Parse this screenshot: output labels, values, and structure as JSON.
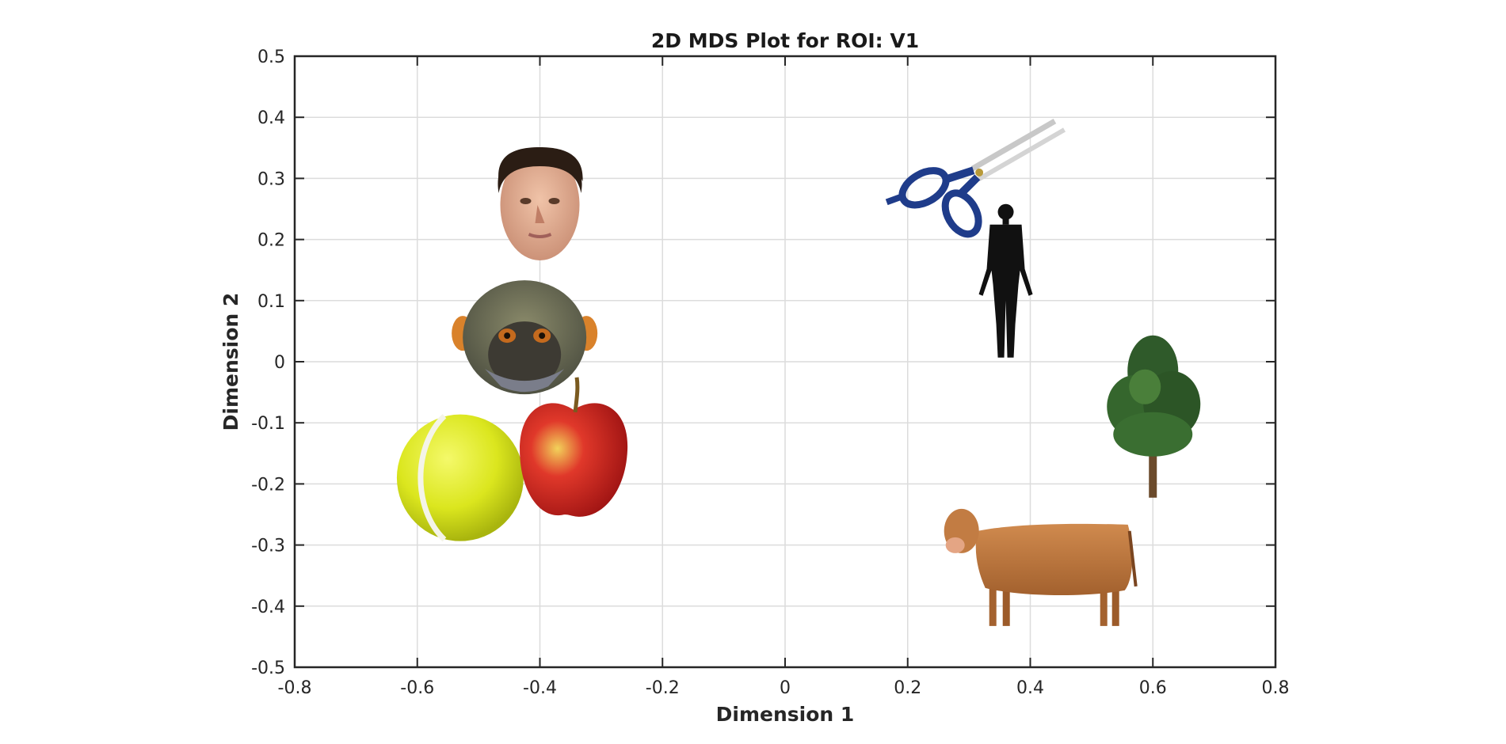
{
  "chart_data": {
    "type": "scatter",
    "title": "2D MDS Plot for ROI: V1",
    "xlabel": "Dimension 1",
    "ylabel": "Dimension 2",
    "xlim": [
      -0.8,
      0.8
    ],
    "ylim": [
      -0.5,
      0.5
    ],
    "xticks": [
      -0.8,
      -0.6,
      -0.4,
      -0.2,
      0,
      0.2,
      0.4,
      0.6,
      0.8
    ],
    "xtick_labels": [
      "-0.8",
      "-0.6",
      "-0.4",
      "-0.2",
      "0",
      "0.2",
      "0.4",
      "0.6",
      "0.8"
    ],
    "yticks": [
      0.5,
      0.4,
      0.3,
      0.2,
      0.1,
      0,
      -0.1,
      -0.2,
      -0.3,
      -0.4,
      -0.5
    ],
    "ytick_labels": [
      "0.5",
      "0.4",
      "0.3",
      "0.2",
      "0.1",
      "0",
      "-0.1",
      "-0.2",
      "-0.3",
      "-0.4",
      "-0.5"
    ],
    "grid": true,
    "points": [
      {
        "name": "human-face",
        "x": -0.4,
        "y": 0.25
      },
      {
        "name": "monkey-face",
        "x": -0.425,
        "y": 0.04
      },
      {
        "name": "tennis-ball",
        "x": -0.53,
        "y": -0.19
      },
      {
        "name": "apple",
        "x": -0.345,
        "y": -0.15
      },
      {
        "name": "scissors",
        "x": 0.3,
        "y": 0.3
      },
      {
        "name": "human-silhouette",
        "x": 0.36,
        "y": 0.1
      },
      {
        "name": "tree",
        "x": 0.6,
        "y": -0.08
      },
      {
        "name": "cow",
        "x": 0.43,
        "y": -0.29
      }
    ]
  }
}
